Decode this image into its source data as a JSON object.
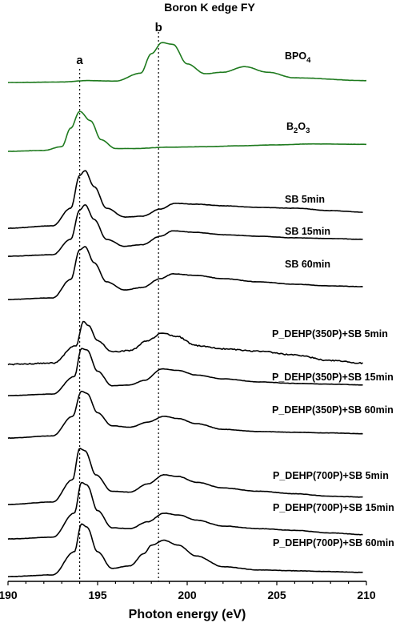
{
  "chart_data": {
    "type": "line",
    "title": "Boron K edge FY",
    "xlabel": "Photon energy (eV)",
    "ylabel": "",
    "xlim": [
      190,
      210
    ],
    "xticks": [
      190,
      195,
      200,
      205,
      210
    ],
    "grid": false,
    "legend": "labels beside each trace",
    "markers": [
      {
        "label": "a",
        "x": 194.0
      },
      {
        "label": "b",
        "x": 198.4
      }
    ],
    "series": [
      {
        "name": "BPO4",
        "label_main": "BPO",
        "label_sub": "4",
        "label_tail": "",
        "color": "#1e7a1e",
        "xrange": [
          190,
          210
        ],
        "points": [
          [
            190,
            0
          ],
          [
            193,
            0.01
          ],
          [
            194.4,
            0.04
          ],
          [
            196,
            0.03
          ],
          [
            197.4,
            0.2
          ],
          [
            198,
            0.62
          ],
          [
            198.6,
            0.86
          ],
          [
            199.2,
            0.82
          ],
          [
            200,
            0.4
          ],
          [
            201,
            0.19
          ],
          [
            202,
            0.22
          ],
          [
            203.2,
            0.34
          ],
          [
            204.5,
            0.22
          ],
          [
            206,
            0.1
          ],
          [
            210,
            0.04
          ]
        ]
      },
      {
        "name": "B2O3",
        "label_main": "B",
        "label_sub": "2",
        "label_tail": "O3",
        "color": "#1e7a1e",
        "xrange": [
          190,
          210
        ],
        "points": [
          [
            190,
            0
          ],
          [
            192,
            0.02
          ],
          [
            193,
            0.1
          ],
          [
            193.5,
            0.5
          ],
          [
            194,
            0.86
          ],
          [
            194.6,
            0.66
          ],
          [
            195.2,
            0.25
          ],
          [
            196,
            0.06
          ],
          [
            197,
            0.06
          ],
          [
            199,
            0.09
          ],
          [
            201,
            0.1
          ],
          [
            203,
            0.12
          ],
          [
            205,
            0.14
          ],
          [
            207,
            0.16
          ],
          [
            210,
            0.15
          ]
        ]
      },
      {
        "name": "SB 5min",
        "label_main": "SB 5min",
        "label_sub": "",
        "label_tail": "",
        "color": "#000000",
        "xrange": [
          190,
          209.8
        ],
        "points": [
          [
            190,
            0
          ],
          [
            192.5,
            0.03
          ],
          [
            193.5,
            0.25
          ],
          [
            194,
            0.66
          ],
          [
            194.3,
            0.72
          ],
          [
            194.8,
            0.52
          ],
          [
            195.5,
            0.25
          ],
          [
            196.5,
            0.14
          ],
          [
            197.5,
            0.15
          ],
          [
            198.5,
            0.24
          ],
          [
            199.3,
            0.31
          ],
          [
            200.5,
            0.3
          ],
          [
            202,
            0.28
          ],
          [
            204,
            0.26
          ],
          [
            206,
            0.25
          ],
          [
            208,
            0.22
          ],
          [
            209.8,
            0.2
          ]
        ]
      },
      {
        "name": "SB 15min",
        "label_main": "SB 15min",
        "label_sub": "",
        "label_tail": "",
        "color": "#000000",
        "xrange": [
          190,
          209.8
        ],
        "points": [
          [
            190,
            0
          ],
          [
            192.5,
            0.02
          ],
          [
            193.5,
            0.22
          ],
          [
            194,
            0.6
          ],
          [
            194.3,
            0.67
          ],
          [
            194.8,
            0.48
          ],
          [
            195.5,
            0.22
          ],
          [
            196.5,
            0.13
          ],
          [
            197.5,
            0.15
          ],
          [
            198.5,
            0.26
          ],
          [
            199.2,
            0.33
          ],
          [
            200.5,
            0.31
          ],
          [
            202,
            0.28
          ],
          [
            204,
            0.26
          ],
          [
            206,
            0.24
          ],
          [
            208,
            0.23
          ],
          [
            209.8,
            0.22
          ]
        ]
      },
      {
        "name": "SB 60min",
        "label_main": "SB 60min",
        "label_sub": "",
        "label_tail": "",
        "color": "#000000",
        "xrange": [
          190,
          209.8
        ],
        "points": [
          [
            190,
            0
          ],
          [
            192.5,
            0.02
          ],
          [
            193.5,
            0.25
          ],
          [
            194,
            0.62
          ],
          [
            194.3,
            0.66
          ],
          [
            194.8,
            0.46
          ],
          [
            195.5,
            0.22
          ],
          [
            196.5,
            0.12
          ],
          [
            197.5,
            0.15
          ],
          [
            198.5,
            0.26
          ],
          [
            199.2,
            0.32
          ],
          [
            200.5,
            0.3
          ],
          [
            202,
            0.26
          ],
          [
            204,
            0.22
          ],
          [
            206,
            0.19
          ],
          [
            208,
            0.17
          ],
          [
            209.8,
            0.16
          ]
        ]
      },
      {
        "name": "P_DEHP(350P)+SB 5min",
        "label_main": "P_DEHP(350P)+SB 5min",
        "label_sub": "",
        "label_tail": "",
        "color": "#000000",
        "xrange": [
          190,
          209.8
        ],
        "points": [
          [
            190,
            0
          ],
          [
            192.5,
            0.02
          ],
          [
            193.8,
            0.3
          ],
          [
            194.2,
            0.68
          ],
          [
            194.5,
            0.62
          ],
          [
            195,
            0.38
          ],
          [
            195.8,
            0.2
          ],
          [
            196.8,
            0.22
          ],
          [
            197.8,
            0.38
          ],
          [
            198.6,
            0.5
          ],
          [
            199.4,
            0.45
          ],
          [
            200.5,
            0.3
          ],
          [
            202,
            0.25
          ],
          [
            204,
            0.21
          ],
          [
            206,
            0.15
          ],
          [
            208,
            0.06
          ],
          [
            209.8,
            0.02
          ]
        ]
      },
      {
        "name": "P_DEHP(350P)+SB 15min",
        "label_main": "P_DEHP(350P)+SB 15min",
        "label_sub": "",
        "label_tail": "",
        "color": "#000000",
        "xrange": [
          190,
          209.8
        ],
        "points": [
          [
            190,
            0
          ],
          [
            192.5,
            0.02
          ],
          [
            193.7,
            0.25
          ],
          [
            194.1,
            0.62
          ],
          [
            194.4,
            0.6
          ],
          [
            195,
            0.32
          ],
          [
            195.8,
            0.13
          ],
          [
            196.8,
            0.14
          ],
          [
            197.6,
            0.2
          ],
          [
            198.6,
            0.35
          ],
          [
            199.5,
            0.33
          ],
          [
            200.5,
            0.27
          ],
          [
            202,
            0.22
          ],
          [
            204,
            0.18
          ],
          [
            206,
            0.16
          ],
          [
            208,
            0.15
          ],
          [
            209.8,
            0.14
          ]
        ]
      },
      {
        "name": "P_DEHP(350P)+SB 60min",
        "label_main": "P_DEHP(350P)+SB 60min",
        "label_sub": "",
        "label_tail": "",
        "color": "#000000",
        "xrange": [
          190,
          209.8
        ],
        "points": [
          [
            190,
            0
          ],
          [
            192.5,
            0.03
          ],
          [
            193.6,
            0.3
          ],
          [
            194.1,
            0.65
          ],
          [
            194.4,
            0.62
          ],
          [
            195,
            0.35
          ],
          [
            195.8,
            0.17
          ],
          [
            196.8,
            0.15
          ],
          [
            197.8,
            0.22
          ],
          [
            198.7,
            0.3
          ],
          [
            199.5,
            0.27
          ],
          [
            200.5,
            0.2
          ],
          [
            202,
            0.12
          ],
          [
            204,
            0.09
          ],
          [
            206,
            0.08
          ],
          [
            208,
            0.07
          ],
          [
            209.8,
            0.06
          ]
        ]
      },
      {
        "name": "P_DEHP(700P)+SB 5min",
        "label_main": "P_DEHP(700P)+SB 5min",
        "label_sub": "",
        "label_tail": "",
        "color": "#000000",
        "xrange": [
          190,
          209.8
        ],
        "points": [
          [
            190,
            0
          ],
          [
            192.5,
            0.03
          ],
          [
            193.6,
            0.3
          ],
          [
            194,
            0.68
          ],
          [
            194.3,
            0.65
          ],
          [
            194.9,
            0.36
          ],
          [
            195.8,
            0.16
          ],
          [
            196.8,
            0.15
          ],
          [
            197.8,
            0.25
          ],
          [
            198.7,
            0.36
          ],
          [
            199.5,
            0.34
          ],
          [
            200.5,
            0.27
          ],
          [
            202,
            0.2
          ],
          [
            204,
            0.16
          ],
          [
            206,
            0.13
          ],
          [
            208,
            0.1
          ],
          [
            209.8,
            0.09
          ]
        ]
      },
      {
        "name": "P_DEHP(700P)+SB 15min",
        "label_main": "P_DEHP(700P)+SB 15min",
        "label_sub": "",
        "label_tail": "",
        "color": "#000000",
        "xrange": [
          190,
          209.8
        ],
        "points": [
          [
            190,
            0
          ],
          [
            192.5,
            0.02
          ],
          [
            193.7,
            0.3
          ],
          [
            194.1,
            0.66
          ],
          [
            194.4,
            0.63
          ],
          [
            195,
            0.33
          ],
          [
            195.8,
            0.13
          ],
          [
            196.8,
            0.12
          ],
          [
            197.8,
            0.2
          ],
          [
            198.7,
            0.3
          ],
          [
            199.5,
            0.28
          ],
          [
            200.5,
            0.22
          ],
          [
            202,
            0.15
          ],
          [
            204,
            0.12
          ],
          [
            206,
            0.1
          ],
          [
            208,
            0.07
          ],
          [
            209.8,
            0.05
          ]
        ]
      },
      {
        "name": "P_DEHP(700P)+SB 60min",
        "label_main": "P_DEHP(700P)+SB 60min",
        "label_sub": "",
        "label_tail": "",
        "color": "#000000",
        "xrange": [
          190,
          209.8
        ],
        "points": [
          [
            190,
            0
          ],
          [
            192.5,
            0.02
          ],
          [
            193.7,
            0.3
          ],
          [
            194.1,
            0.64
          ],
          [
            194.4,
            0.6
          ],
          [
            195,
            0.3
          ],
          [
            195.8,
            0.1
          ],
          [
            196.8,
            0.13
          ],
          [
            197.6,
            0.28
          ],
          [
            198,
            0.38
          ],
          [
            198.7,
            0.44
          ],
          [
            199.5,
            0.38
          ],
          [
            200.5,
            0.25
          ],
          [
            202,
            0.12
          ],
          [
            204,
            0.08
          ],
          [
            206,
            0.07
          ],
          [
            208,
            0.06
          ],
          [
            209.8,
            0.05
          ]
        ]
      }
    ]
  }
}
